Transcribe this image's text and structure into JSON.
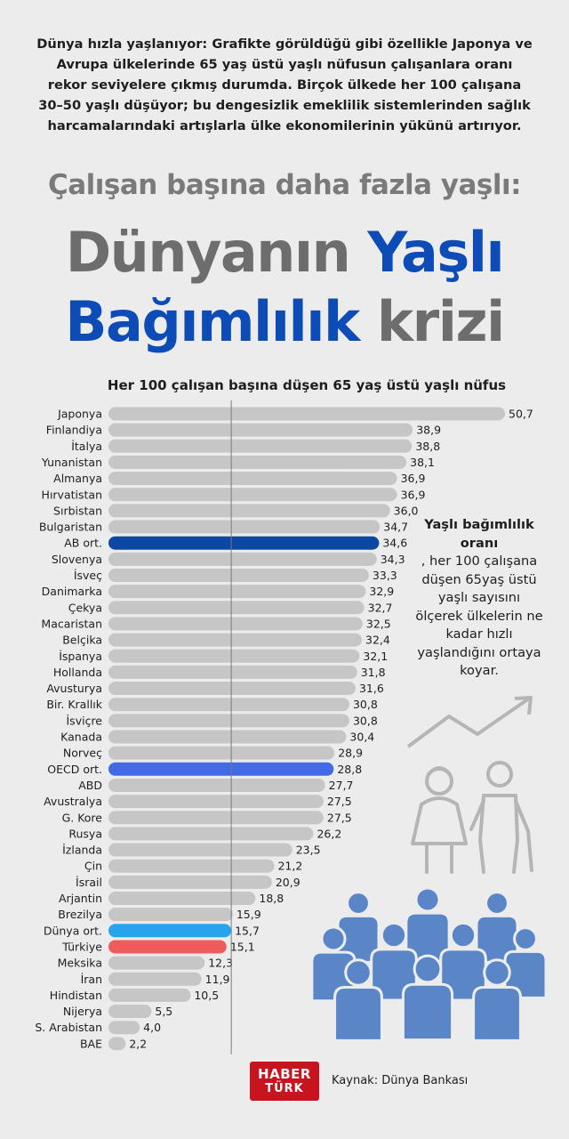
{
  "intro": "Dünya hızla yaşlanıyor: Grafikte görüldüğü gibi özellikle Japonya ve Avrupa ülkelerinde 65 yaş üstü yaşlı nüfusun çalışanlara oranı rekor seviyelere çıkmış durumda. Birçok ülkede her 100 çalışana 30–50 yaşlı düşüyor; bu dengesizlik emeklilik sistemlerinden sağlık harcamalarındaki artışlarla ülke ekonomilerinin yükünü artırıyor.",
  "subtitle": "Çalışan başına daha fazla yaşlı:",
  "title": {
    "line1_a": "Dünyanın ",
    "line1_b": "Yaşlı",
    "line2_a": "Bağımlılık",
    "line2_b": " krizi"
  },
  "side_note": {
    "bold": "Yaşlı bağımlılık oranı",
    "text": ", her 100 çalışana düşen 65yaş üstü yaşlı sayısını ölçerek ülkelerin ne kadar hızlı yaşlandığını ortaya koyar."
  },
  "logo": {
    "line1": "HABER",
    "line2": "TÜRK"
  },
  "source": "Kaynak: Dünya Bankası",
  "colors": {
    "default_bar": "#c6c6c6",
    "ab": "#0d47a1",
    "oecd": "#4169e8",
    "dunya": "#2aa3ee",
    "turkiye": "#f05b5b",
    "accent_title": "#0d4cb6"
  },
  "chart_data": {
    "type": "bar",
    "orientation": "horizontal",
    "title": "Her 100 çalışan başına düşen 65 yaş üstü yaşlı nüfus",
    "categories": [
      "Japonya",
      "Finlandiya",
      "İtalya",
      "Yunanistan",
      "Almanya",
      "Hırvatistan",
      "Sırbistan",
      "Bulgaristan",
      "AB ort.",
      "Slovenya",
      "İsveç",
      "Danimarka",
      "Çekya",
      "Macaristan",
      "Belçika",
      "İspanya",
      "Hollanda",
      "Avusturya",
      "Bir. Krallık",
      "İsviçre",
      "Kanada",
      "Norveç",
      "OECD ort.",
      "ABD",
      "Avustralya",
      "G. Kore",
      "Rusya",
      "İzlanda",
      "Çin",
      "İsrail",
      "Arjantin",
      "Brezilya",
      "Dünya ort.",
      "Türkiye",
      "Meksika",
      "İran",
      "Hindistan",
      "Nijerya",
      "S. Arabistan",
      "BAE"
    ],
    "values": [
      50.7,
      38.9,
      38.8,
      38.1,
      36.9,
      36.9,
      36.0,
      34.7,
      34.6,
      34.3,
      33.3,
      32.9,
      32.7,
      32.5,
      32.4,
      32.1,
      31.8,
      31.6,
      30.8,
      30.8,
      30.4,
      28.9,
      28.8,
      27.7,
      27.5,
      27.5,
      26.2,
      23.5,
      21.2,
      20.9,
      18.8,
      15.9,
      15.7,
      15.1,
      12.3,
      11.9,
      10.5,
      5.5,
      4.0,
      2.2
    ],
    "value_labels": [
      "50,7",
      "38,9",
      "38,8",
      "38,1",
      "36,9",
      "36,9",
      "36,0",
      "34,7",
      "34,6",
      "34,3",
      "33,3",
      "32,9",
      "32,7",
      "32,5",
      "32,4",
      "32,1",
      "31,8",
      "31,6",
      "30,8",
      "30,8",
      "30,4",
      "28,9",
      "28,8",
      "27,7",
      "27,5",
      "27,5",
      "26,2",
      "23,5",
      "21,2",
      "20,9",
      "18,8",
      "15,9",
      "15,7",
      "15,1",
      "12,3",
      "11,9",
      "10,5",
      "5,5",
      "4,0",
      "2,2"
    ],
    "highlights": {
      "AB ort.": "ab",
      "OECD ort.": "oecd",
      "Dünya ort.": "dunya",
      "Türkiye": "turkiye"
    },
    "reference_line": 15.7,
    "xlim": [
      0,
      50.7
    ],
    "grid": false,
    "legend": "none"
  }
}
